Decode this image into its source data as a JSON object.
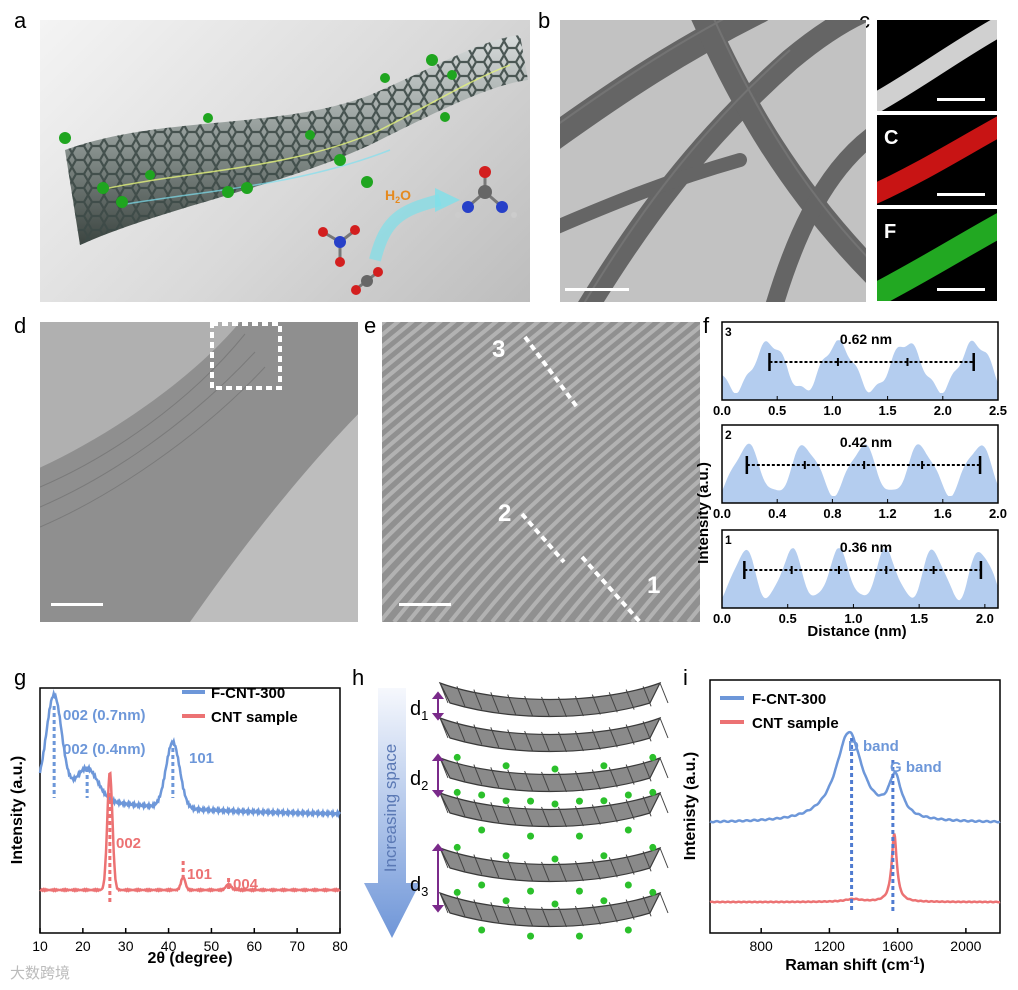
{
  "panel_labels": [
    "a",
    "b",
    "c",
    "d",
    "e",
    "f",
    "g",
    "h",
    "i"
  ],
  "panel_a": {
    "h2o_label": "H",
    "h2o_sub": "2",
    "h2o_tail": "O"
  },
  "panel_c": {
    "element_labels": [
      "C",
      "F"
    ]
  },
  "panel_e": {
    "line_labels": [
      "3",
      "2",
      "1"
    ]
  },
  "panel_f": {
    "ylabel": "Intensity (a.u.)",
    "xlabel": "Distance (nm)",
    "profiles": [
      {
        "id": "3",
        "spacing": "0.62 nm",
        "ticks": [
          "0.0",
          "0.5",
          "1.0",
          "1.5",
          "2.0",
          "2.5"
        ],
        "xmax": 2.5,
        "markers": [
          0.43,
          1.05,
          1.68,
          2.28
        ]
      },
      {
        "id": "2",
        "spacing": "0.42 nm",
        "ticks": [
          "0.0",
          "0.4",
          "0.8",
          "1.2",
          "1.6",
          "2.0"
        ],
        "xmax": 2.0,
        "markers": [
          0.18,
          0.6,
          1.03,
          1.45,
          1.87
        ]
      },
      {
        "id": "1",
        "spacing": "0.36 nm",
        "ticks": [
          "0.0",
          "0.5",
          "1.0",
          "1.5",
          "2.0"
        ],
        "xmax": 2.1,
        "markers": [
          0.17,
          0.53,
          0.89,
          1.25,
          1.61,
          1.97
        ]
      }
    ]
  },
  "panel_g": {
    "ylabel": "Intensity (a.u.)",
    "xlabel": "2θ (degree)",
    "x_ticks": [
      "10",
      "20",
      "30",
      "40",
      "50",
      "60",
      "70",
      "80"
    ],
    "legend": [
      "F-CNT-300",
      "CNT sample"
    ],
    "colors": {
      "fcnt": "#6d97d9",
      "cnt": "#ec7273"
    },
    "annotations_blue": [
      "002 (0.7nm)",
      "002 (0.4nm)",
      "101"
    ],
    "annotations_red": [
      "002",
      "101",
      "004"
    ]
  },
  "panel_h": {
    "arrow_text": "Increasing space",
    "d_labels": [
      {
        "main": "d",
        "sub": "1"
      },
      {
        "main": "d",
        "sub": "2"
      },
      {
        "main": "d",
        "sub": "3"
      }
    ]
  },
  "panel_i": {
    "ylabel": "Intenisty (a.u.)",
    "xlabel_main": "Raman shift (cm",
    "xlabel_sup": "-1",
    "xlabel_end": ")",
    "x_ticks": [
      "800",
      "1200",
      "1600",
      "2000"
    ],
    "legend": [
      "F-CNT-300",
      "CNT sample"
    ],
    "annotations": [
      "D band",
      "G band"
    ]
  },
  "watermark": "大数跨境"
}
